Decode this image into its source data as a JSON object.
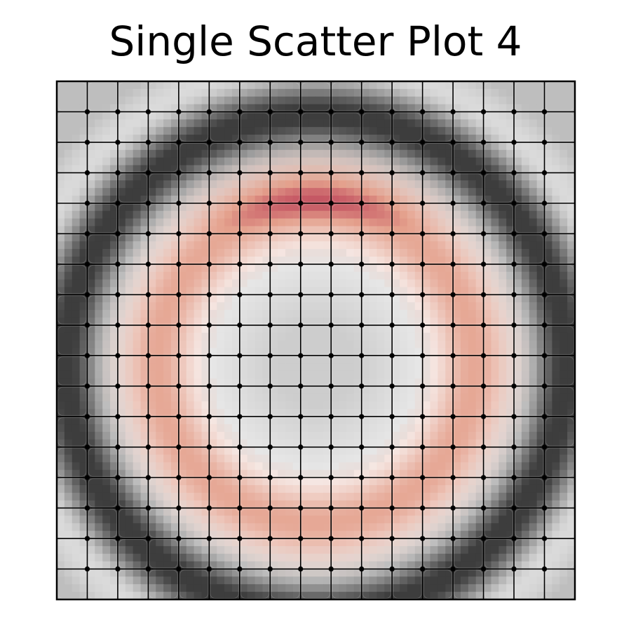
{
  "chart_data": {
    "type": "scatter",
    "title": "Single Scatter Plot 4",
    "xlabel": "",
    "ylabel": "",
    "grid": true,
    "axis_ticks": false,
    "colormap": "diverging",
    "colors": {
      "low": "#3d3d3d",
      "mid": "#ffffff",
      "high": "#6e1f3f",
      "background_tile": "#bdbdbd",
      "grid_line": "#000000",
      "point": "#000000"
    },
    "x": [
      0,
      1,
      2,
      3,
      4,
      5,
      6,
      7,
      8,
      9,
      10,
      11,
      12,
      13,
      14,
      15,
      16,
      17
    ],
    "y": [
      0,
      1,
      2,
      3,
      4,
      5,
      6,
      7,
      8,
      9,
      10,
      11,
      12,
      13,
      14,
      15,
      16,
      17
    ],
    "points": "grid of 16 x 16 interior intersections",
    "field": {
      "description": "radial ring pattern shown as shaded background",
      "ring_center": [
        8.5,
        9.3
      ],
      "inner_ring_radius": 5.2,
      "outer_dark_radius": 8.2,
      "peak_region": "top of ring"
    }
  }
}
